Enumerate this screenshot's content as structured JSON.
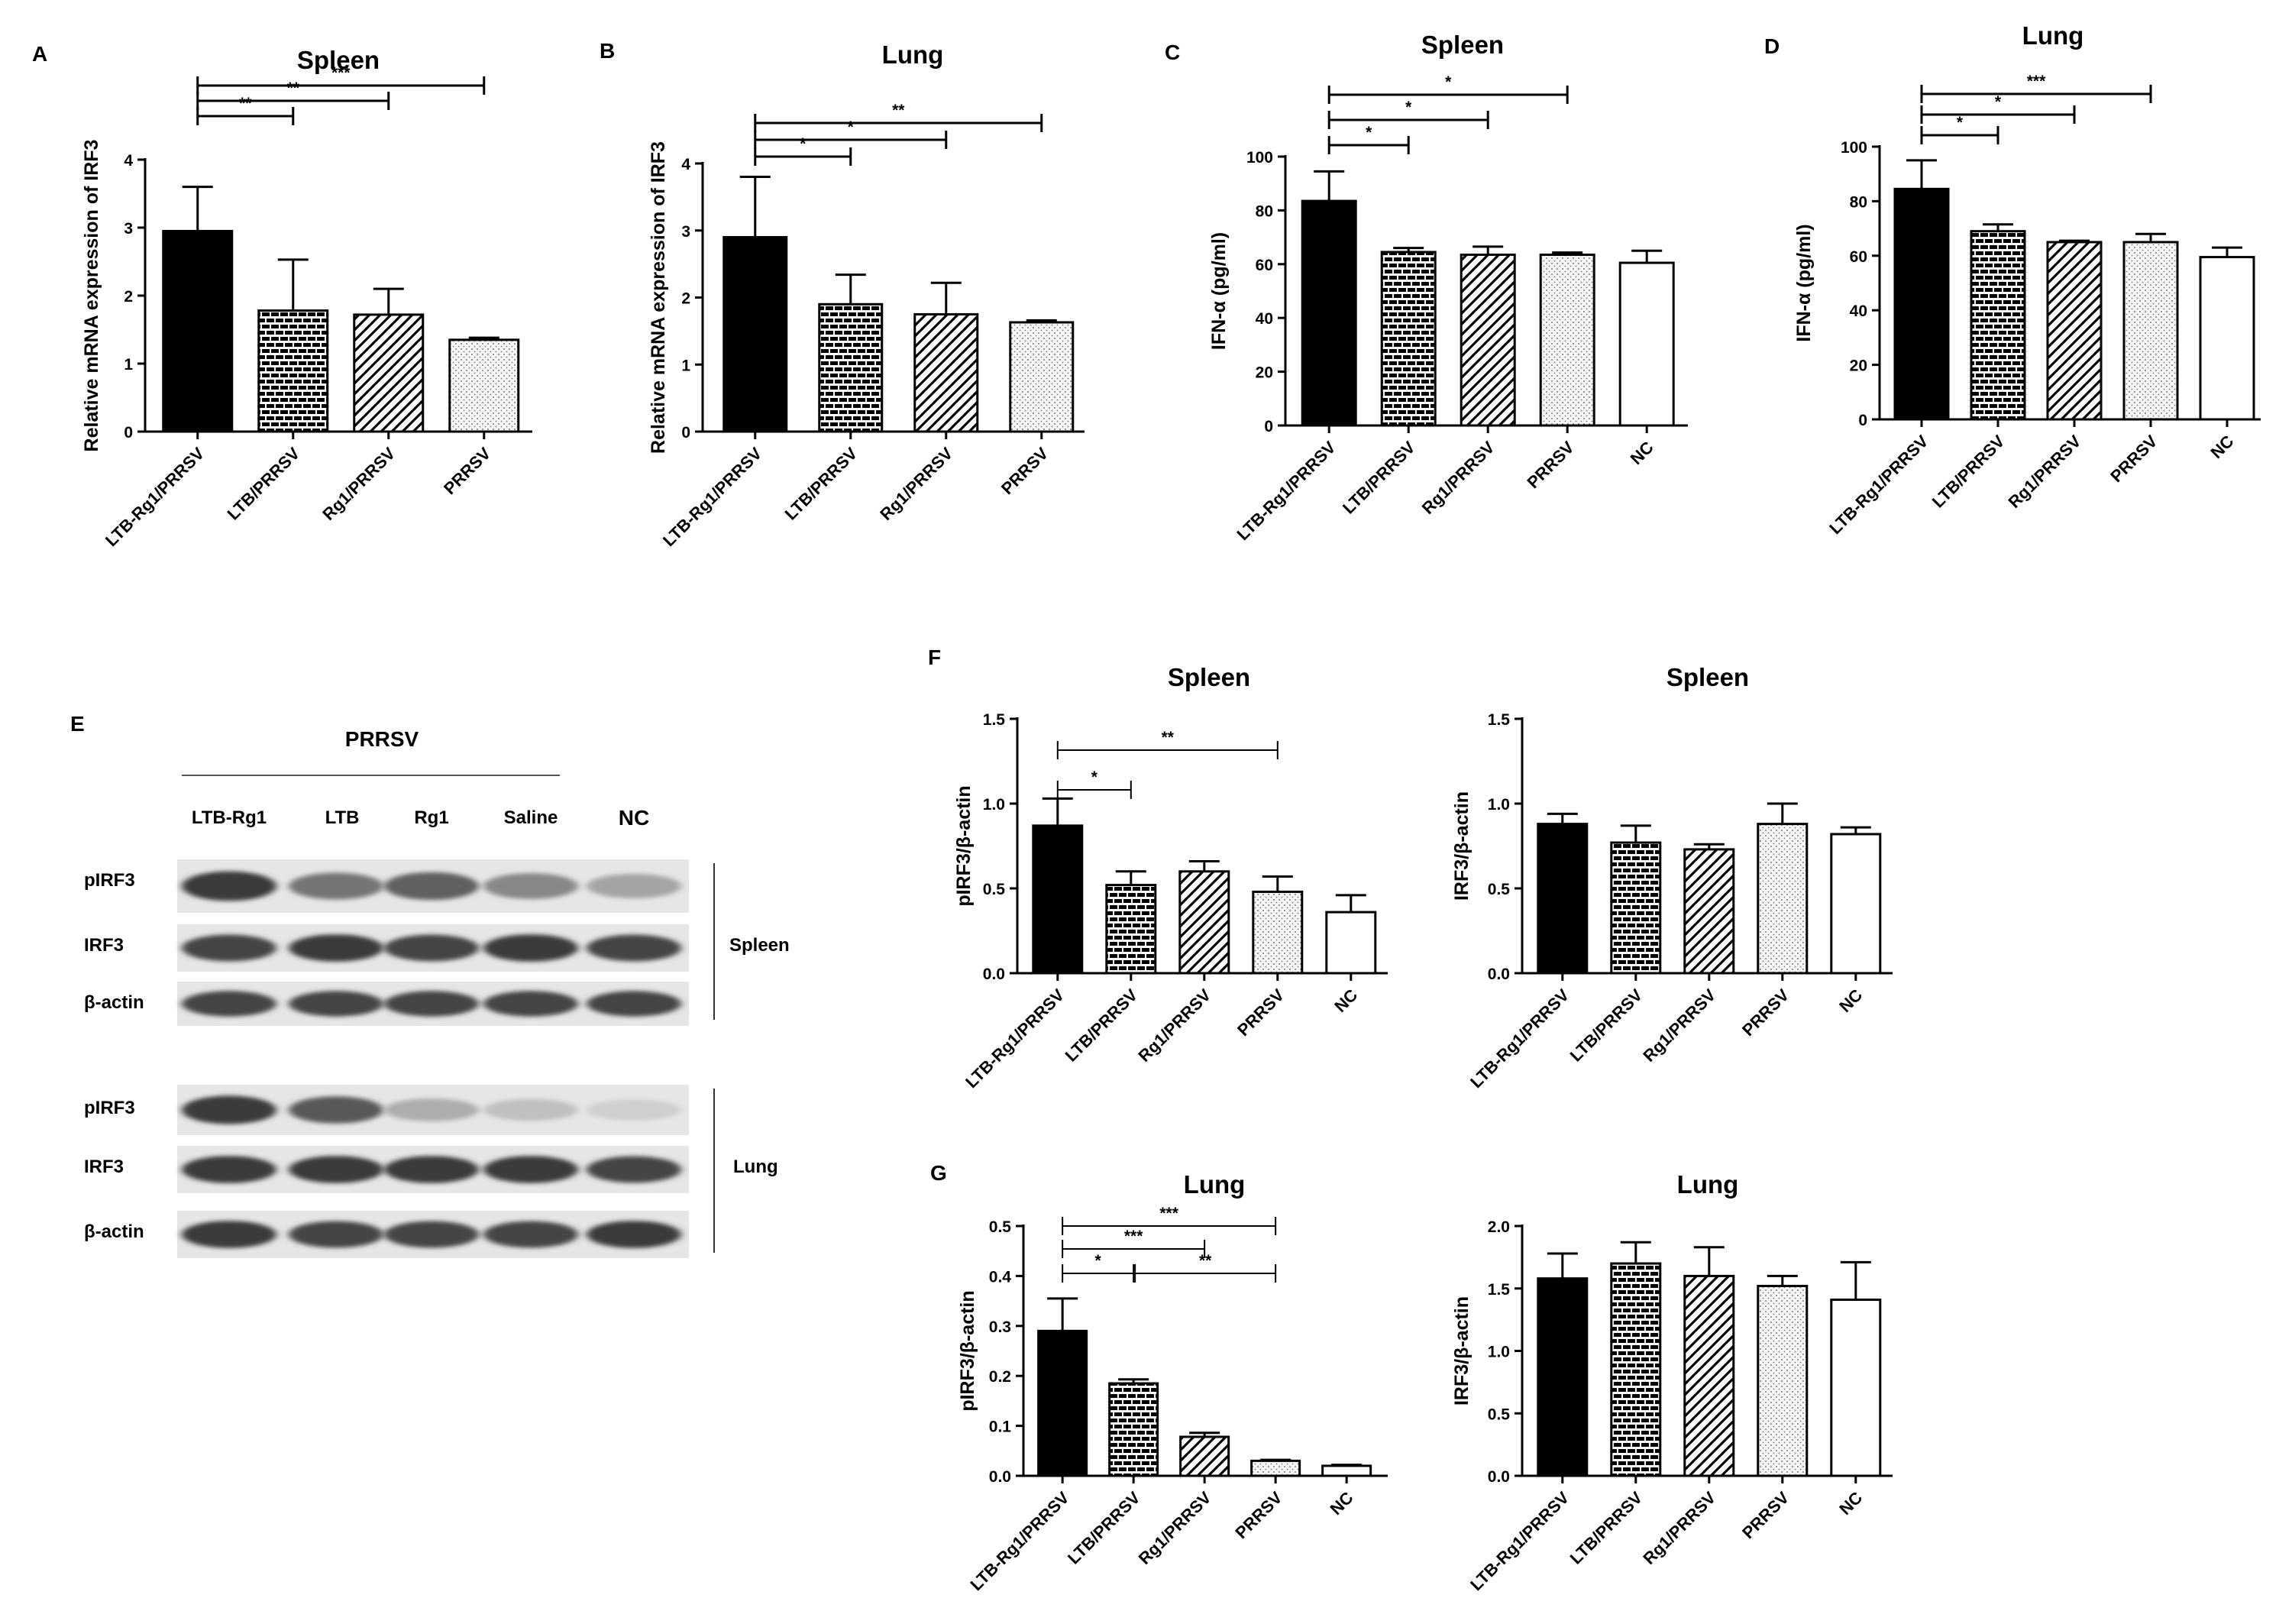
{
  "panels": {
    "A": "A",
    "B": "B",
    "C": "C",
    "D": "D",
    "E": "E",
    "F": "F",
    "G": "G"
  },
  "chart_data": [
    {
      "id": "A",
      "type": "bar",
      "title": "Spleen",
      "ylabel": "Relative mRNA expression of IRF3",
      "xlabel": "",
      "ylim": [
        0,
        4
      ],
      "yticks": [
        "0",
        "1",
        "2",
        "3",
        "4"
      ],
      "categories": [
        "LTB-Rg1/PRRSV",
        "LTB/PRRSV",
        "Rg1/PRRSV",
        "PRRSV"
      ],
      "values": [
        2.95,
        1.78,
        1.72,
        1.35
      ],
      "errors": [
        0.65,
        0.75,
        0.38,
        0.03
      ],
      "patterns": [
        "solid",
        "brick",
        "diagonal",
        "dots"
      ],
      "significance": [
        {
          "from": 0,
          "to": 1,
          "label": "**"
        },
        {
          "from": 0,
          "to": 2,
          "label": "**"
        },
        {
          "from": 0,
          "to": 3,
          "label": "***"
        }
      ]
    },
    {
      "id": "B",
      "type": "bar",
      "title": "Lung",
      "ylabel": "Relative mRNA expression of IRF3",
      "xlabel": "",
      "ylim": [
        0,
        4
      ],
      "yticks": [
        "0",
        "1",
        "2",
        "3",
        "4"
      ],
      "categories": [
        "LTB-Rg1/PRRSV",
        "LTB/PRRSV",
        "Rg1/PRRSV",
        "PRRSV"
      ],
      "values": [
        2.9,
        1.9,
        1.75,
        1.63
      ],
      "errors": [
        0.9,
        0.44,
        0.47,
        0.03
      ],
      "patterns": [
        "solid",
        "brick",
        "diagonal",
        "dots"
      ],
      "significance": [
        {
          "from": 0,
          "to": 1,
          "label": "*"
        },
        {
          "from": 0,
          "to": 2,
          "label": "*"
        },
        {
          "from": 0,
          "to": 3,
          "label": "**"
        }
      ]
    },
    {
      "id": "C",
      "type": "bar",
      "title": "Spleen",
      "ylabel": "IFN-α (pg/ml)",
      "xlabel": "",
      "ylim": [
        0,
        100
      ],
      "yticks": [
        "0",
        "20",
        "40",
        "60",
        "80",
        "100"
      ],
      "categories": [
        "LTB-Rg1/PRRSV",
        "LTB/PRRSV",
        "Rg1/PRRSV",
        "PRRSV",
        "NC"
      ],
      "values": [
        83.5,
        64.5,
        63.5,
        63.5,
        60.5
      ],
      "errors": [
        11,
        1.5,
        3,
        0.8,
        4.5
      ],
      "patterns": [
        "solid",
        "brick",
        "diagonal",
        "dots",
        "open"
      ],
      "significance": [
        {
          "from": 0,
          "to": 1,
          "label": "*"
        },
        {
          "from": 0,
          "to": 2,
          "label": "*"
        },
        {
          "from": 0,
          "to": 3,
          "label": "*"
        }
      ]
    },
    {
      "id": "D",
      "type": "bar",
      "title": "Lung",
      "ylabel": "IFN-α (pg/ml)",
      "xlabel": "",
      "ylim": [
        0,
        100
      ],
      "yticks": [
        "0",
        "20",
        "40",
        "60",
        "80",
        "100"
      ],
      "categories": [
        "LTB-Rg1/PRRSV",
        "LTB/PRRSV",
        "Rg1/PRRSV",
        "PRRSV",
        "NC"
      ],
      "values": [
        84.5,
        69,
        65,
        65,
        59.5
      ],
      "errors": [
        10.5,
        2.5,
        0.5,
        3,
        3.5
      ],
      "patterns": [
        "solid",
        "brick",
        "diagonal",
        "dots",
        "open"
      ],
      "significance": [
        {
          "from": 0,
          "to": 1,
          "label": "*"
        },
        {
          "from": 0,
          "to": 2,
          "label": "*"
        },
        {
          "from": 0,
          "to": 3,
          "label": "***"
        }
      ]
    },
    {
      "id": "F1",
      "type": "bar",
      "title": "Spleen",
      "ylabel": "pIRF3/β-actin",
      "xlabel": "",
      "ylim": [
        0,
        1.5
      ],
      "yticks": [
        "0.0",
        "0.5",
        "1.0",
        "1.5"
      ],
      "categories": [
        "LTB-Rg1/PRRSV",
        "LTB/PRRSV",
        "Rg1/PRRSV",
        "PRRSV",
        "NC"
      ],
      "values": [
        0.87,
        0.52,
        0.6,
        0.48,
        0.36
      ],
      "errors": [
        0.16,
        0.08,
        0.06,
        0.09,
        0.1
      ],
      "patterns": [
        "solid",
        "brick",
        "diagonal",
        "dots",
        "open"
      ],
      "significance": [
        {
          "from": 0,
          "to": 1,
          "label": "*"
        },
        {
          "from": 0,
          "to": 3,
          "label": "**"
        }
      ]
    },
    {
      "id": "F2",
      "type": "bar",
      "title": "Spleen",
      "ylabel": "IRF3/β-actin",
      "xlabel": "",
      "ylim": [
        0,
        1.5
      ],
      "yticks": [
        "0.0",
        "0.5",
        "1.0",
        "1.5"
      ],
      "categories": [
        "LTB-Rg1/PRRSV",
        "LTB/PRRSV",
        "Rg1/PRRSV",
        "PRRSV",
        "NC"
      ],
      "values": [
        0.88,
        0.77,
        0.73,
        0.88,
        0.82
      ],
      "errors": [
        0.06,
        0.1,
        0.03,
        0.12,
        0.04
      ],
      "patterns": [
        "solid",
        "brick",
        "diagonal",
        "dots",
        "open"
      ],
      "significance": []
    },
    {
      "id": "G1",
      "type": "bar",
      "title": "Lung",
      "ylabel": "pIRF3/β-actin",
      "xlabel": "",
      "ylim": [
        0,
        0.5
      ],
      "yticks": [
        "0.0",
        "0.1",
        "0.2",
        "0.3",
        "0.4",
        "0.5"
      ],
      "categories": [
        "LTB-Rg1/PRRSV",
        "LTB/PRRSV",
        "Rg1/PRRSV",
        "PRRSV",
        "NC"
      ],
      "values": [
        0.29,
        0.185,
        0.078,
        0.03,
        0.02
      ],
      "errors": [
        0.065,
        0.008,
        0.008,
        0.002,
        0.002
      ],
      "patterns": [
        "solid",
        "brick",
        "diagonal",
        "dots",
        "open"
      ],
      "significance": [
        {
          "from": 0,
          "to": 3,
          "label": "***"
        },
        {
          "from": 0,
          "to": 2,
          "label": "***"
        },
        {
          "from": 0,
          "to": 1,
          "label": "*"
        },
        {
          "from": 1,
          "to": 3,
          "label": "**"
        }
      ]
    },
    {
      "id": "G2",
      "type": "bar",
      "title": "Lung",
      "ylabel": "IRF3/β-actin",
      "xlabel": "",
      "ylim": [
        0,
        2.0
      ],
      "yticks": [
        "0.0",
        "0.5",
        "1.0",
        "1.5",
        "2.0"
      ],
      "categories": [
        "LTB-Rg1/PRRSV",
        "LTB/PRRSV",
        "Rg1/PRRSV",
        "PRRSV",
        "NC"
      ],
      "values": [
        1.58,
        1.7,
        1.6,
        1.52,
        1.41
      ],
      "errors": [
        0.2,
        0.17,
        0.23,
        0.08,
        0.3
      ],
      "patterns": [
        "solid",
        "brick",
        "diagonal",
        "dots",
        "open"
      ],
      "significance": []
    }
  ],
  "western_blot": {
    "group_label": "PRRSV",
    "lanes": [
      "LTB-Rg1",
      "LTB",
      "Rg1",
      "Saline",
      "NC"
    ],
    "spleen": {
      "label": "Spleen",
      "rows": [
        "pIRF3",
        "IRF3",
        "β-actin"
      ]
    },
    "lung": {
      "label": "Lung",
      "rows": [
        "pIRF3",
        "IRF3",
        "β-actin"
      ]
    },
    "band_intensity": {
      "spleen_pIRF3": [
        0.9,
        0.6,
        0.7,
        0.5,
        0.35
      ],
      "spleen_IRF3": [
        0.85,
        0.9,
        0.85,
        0.9,
        0.85
      ],
      "spleen_actin": [
        0.85,
        0.85,
        0.85,
        0.85,
        0.85
      ],
      "lung_pIRF3": [
        0.9,
        0.75,
        0.3,
        0.2,
        0.12
      ],
      "lung_IRF3": [
        0.9,
        0.9,
        0.9,
        0.9,
        0.85
      ],
      "lung_actin": [
        0.9,
        0.85,
        0.85,
        0.85,
        0.9
      ]
    }
  }
}
